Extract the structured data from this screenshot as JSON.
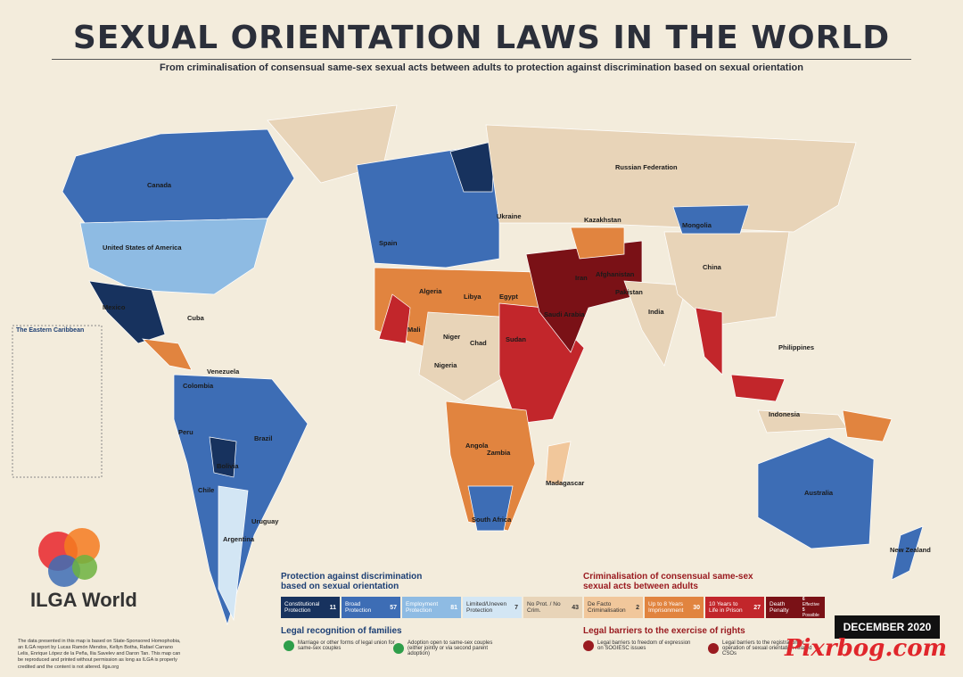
{
  "header": {
    "title": "SEXUAL ORIENTATION LAWS IN THE WORLD",
    "subtitle": "From criminalisation of consensual same-sex sexual acts between adults to protection against discrimination based on sexual orientation"
  },
  "map": {
    "inset_title": "The Eastern Caribbean",
    "countries": [
      "Canada",
      "United States of America",
      "Mexico",
      "Cuba",
      "Colombia",
      "Venezuela",
      "Peru",
      "Brazil",
      "Bolivia",
      "Argentina",
      "Chile",
      "Uruguay",
      "Russian Federation",
      "Kazakhstan",
      "Mongolia",
      "China",
      "India",
      "Iran",
      "Afghanistan",
      "Pakistan",
      "Saudi Arabia",
      "Algeria",
      "Libya",
      "Egypt",
      "Mali",
      "Niger",
      "Chad",
      "Sudan",
      "Nigeria",
      "Angola",
      "Zambia",
      "South Africa",
      "Madagascar",
      "Indonesia",
      "Philippines",
      "Australia",
      "New Zealand",
      "Ukraine",
      "Spain"
    ]
  },
  "legend": {
    "protection": {
      "title": "Protection against discrimination based on sexual orientation",
      "items": [
        {
          "label": "Constitutional Protection",
          "count": 11,
          "color": "#17325e"
        },
        {
          "label": "Broad Protection",
          "count": 57,
          "color": "#3d6db5"
        },
        {
          "label": "Employment Protection",
          "count": 81,
          "color": "#8ebbe3"
        },
        {
          "label": "Limited/Uneven Protection",
          "count": 7,
          "color": "#d3e6f4"
        }
      ]
    },
    "neutral": {
      "label": "No Prot. / No Crim.",
      "count": 43,
      "color": "#e8d4b8"
    },
    "criminalisation": {
      "title": "Criminalisation of consensual same-sex sexual acts between adults",
      "items": [
        {
          "label": "De Facto Criminalisation",
          "count": 2,
          "color": "#f1c79b"
        },
        {
          "label": "Up to 8 Years Imprisonment",
          "count": 30,
          "color": "#e1843f"
        },
        {
          "label": "10 Years to Life in Prison",
          "count": 27,
          "color": "#c2262b"
        }
      ],
      "death_penalty": {
        "label": "Death Penalty",
        "color": "#7a1116",
        "effective": 6,
        "effective_label": "Effective",
        "possible": 5,
        "possible_label": "Possible"
      }
    },
    "families": {
      "title": "Legal recognition of families",
      "items": [
        "Marriage or other forms of legal union for same-sex couples",
        "Adoption open to same-sex couples (either jointly or via second parent adoption)"
      ]
    },
    "barriers": {
      "title": "Legal barriers to the exercise of rights",
      "items": [
        "Legal barriers to freedom of expression on SOGIESC issues",
        "Legal barriers to the registration or operation of sexual orientation related CSOs"
      ]
    }
  },
  "badge": "DECEMBER 2020",
  "credits": "The data presented in this map is based on State-Sponsored Homophobia, an ILGA report by Lucas Ramón Mendos, Kellyn Botha, Rafael Carrano Lelis, Enrique López de la Peña, Ilia Savelev and Daron Tan. This map can be reproduced and printed without permission as long as ILGA is properly credited and the content is not altered. ilga.org",
  "logo": "ILGA World",
  "watermark": "Pixrbog.com"
}
